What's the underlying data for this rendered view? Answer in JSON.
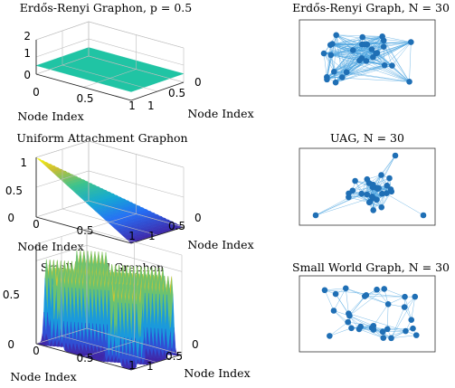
{
  "chart_data": [
    {
      "type": "surface",
      "title": "Erdős-Renyi Graphon, p = 0.5",
      "xlabel": "Node Index",
      "ylabel": "Node Index",
      "zticks": [
        "0",
        "1",
        "2"
      ],
      "xticks": [
        "0",
        "0.5",
        "1"
      ],
      "yticks": [
        "0",
        "0.5",
        "1"
      ],
      "function": "constant",
      "p": 0.5,
      "zlim": [
        0,
        2
      ]
    },
    {
      "type": "network",
      "title": "Erdős-Renyi Graph, N = 30",
      "nodes": 30
    },
    {
      "type": "surface",
      "title": "Uniform Attachment Graphon",
      "xlabel": "Node Index",
      "ylabel": "Node Index",
      "zticks": [
        "0",
        "0.5",
        "1"
      ],
      "xticks": [
        "0",
        "0.5",
        "1"
      ],
      "yticks": [
        "0",
        "0.5",
        "1"
      ],
      "function": "1 - max(u, v)",
      "zlim": [
        0,
        1
      ]
    },
    {
      "type": "network",
      "title": "UAG, N = 30",
      "nodes": 30
    },
    {
      "type": "surface",
      "title": "Small World Graphon",
      "xlabel": "Node Index",
      "ylabel": "Node Index",
      "zticks": [
        "0",
        "0.5"
      ],
      "xticks": [
        "0",
        "0.5",
        "1"
      ],
      "yticks": [
        "0",
        "0.5",
        "1"
      ],
      "function": "periodic ridges along the diagonal",
      "zlim": [
        0,
        0.6
      ]
    },
    {
      "type": "network",
      "title": "Small World Graph, N = 30",
      "nodes": 30
    }
  ],
  "colors": {
    "node": "#1f6fb5",
    "edge": "#4aa3df",
    "surface_low": "#3e26a8",
    "surface_mid": "#16bba5",
    "surface_high": "#f9fb0e",
    "constant_surface": "#20c4a4"
  }
}
